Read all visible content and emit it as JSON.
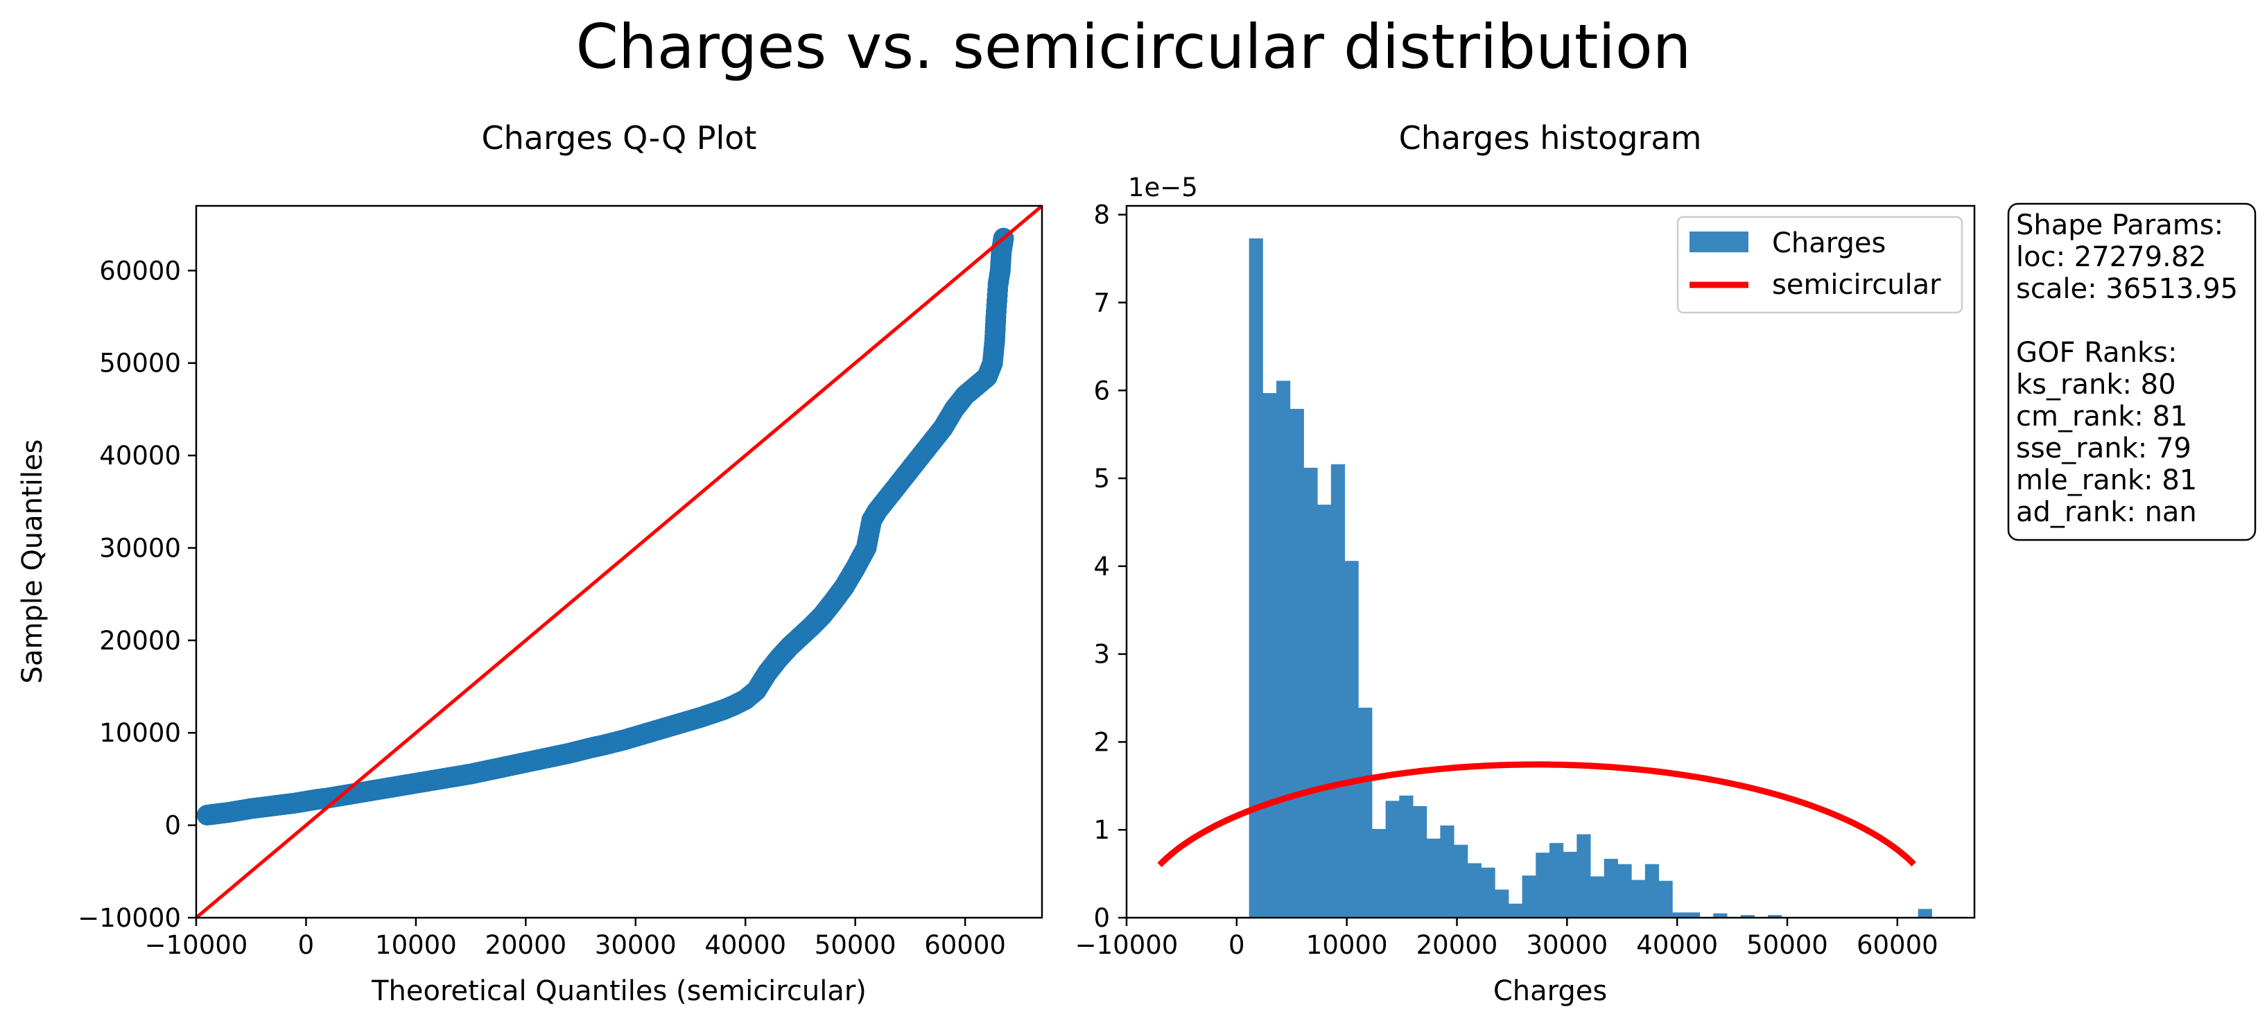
{
  "figure": {
    "suptitle": "Charges vs. semicircular distribution"
  },
  "colors": {
    "data": "#1f77b4",
    "hist": "#3a87bf",
    "fit": "#ff0000"
  },
  "chart_data": [
    {
      "type": "scatter",
      "title": "Charges Q-Q Plot",
      "xlabel": "Theoretical Quantiles (semicircular)",
      "ylabel": "Sample Quantiles",
      "xlim": [
        -10000,
        67000
      ],
      "ylim": [
        -10000,
        67000
      ],
      "xticks": [
        -10000,
        0,
        10000,
        20000,
        30000,
        40000,
        50000,
        60000
      ],
      "yticks": [
        -10000,
        0,
        10000,
        20000,
        30000,
        40000,
        50000,
        60000
      ],
      "reference_line": {
        "x": [
          -10000,
          67000
        ],
        "y": [
          -10000,
          67000
        ]
      },
      "series": [
        {
          "points": [
            [
              -9000,
              1100
            ],
            [
              -8000,
              1250
            ],
            [
              -7000,
              1400
            ],
            [
              -6000,
              1600
            ],
            [
              -5000,
              1800
            ],
            [
              -4000,
              1950
            ],
            [
              -3000,
              2100
            ],
            [
              -2000,
              2250
            ],
            [
              -1000,
              2400
            ],
            [
              0,
              2600
            ],
            [
              1000,
              2800
            ],
            [
              2000,
              2950
            ],
            [
              3000,
              3150
            ],
            [
              4000,
              3350
            ],
            [
              5000,
              3550
            ],
            [
              6000,
              3750
            ],
            [
              7000,
              3950
            ],
            [
              8000,
              4150
            ],
            [
              9000,
              4350
            ],
            [
              10000,
              4550
            ],
            [
              11000,
              4750
            ],
            [
              12000,
              4950
            ],
            [
              13000,
              5150
            ],
            [
              14000,
              5350
            ],
            [
              15000,
              5550
            ],
            [
              16000,
              5800
            ],
            [
              17000,
              6050
            ],
            [
              18000,
              6300
            ],
            [
              19000,
              6550
            ],
            [
              20000,
              6800
            ],
            [
              21000,
              7050
            ],
            [
              22000,
              7300
            ],
            [
              23000,
              7550
            ],
            [
              24000,
              7800
            ],
            [
              25000,
              8100
            ],
            [
              26000,
              8400
            ],
            [
              27000,
              8650
            ],
            [
              28000,
              8950
            ],
            [
              29000,
              9250
            ],
            [
              30000,
              9600
            ],
            [
              31000,
              9950
            ],
            [
              32000,
              10300
            ],
            [
              33000,
              10650
            ],
            [
              34000,
              11000
            ],
            [
              35000,
              11350
            ],
            [
              36000,
              11700
            ],
            [
              37000,
              12100
            ],
            [
              38000,
              12500
            ],
            [
              39000,
              13000
            ],
            [
              40000,
              13600
            ],
            [
              41000,
              14600
            ],
            [
              42000,
              16500
            ],
            [
              43000,
              18000
            ],
            [
              44000,
              19300
            ],
            [
              45000,
              20400
            ],
            [
              46000,
              21500
            ],
            [
              47000,
              22700
            ],
            [
              48000,
              24200
            ],
            [
              49000,
              25800
            ],
            [
              50000,
              27800
            ],
            [
              51000,
              30000
            ],
            [
              51500,
              33000
            ],
            [
              52000,
              34000
            ],
            [
              53000,
              35500
            ],
            [
              54000,
              37000
            ],
            [
              55000,
              38500
            ],
            [
              56000,
              40000
            ],
            [
              57000,
              41500
            ],
            [
              58000,
              43000
            ],
            [
              59000,
              45000
            ],
            [
              60000,
              46500
            ],
            [
              61000,
              47500
            ],
            [
              62000,
              48500
            ],
            [
              62500,
              50000
            ],
            [
              62700,
              52500
            ],
            [
              62800,
              55000
            ],
            [
              63000,
              58500
            ],
            [
              63200,
              60000
            ],
            [
              63300,
              62000
            ],
            [
              63500,
              63500
            ]
          ]
        }
      ]
    },
    {
      "type": "bar",
      "title": "Charges histogram",
      "xlabel": "Charges",
      "ylabel": "",
      "y_offset_text": "1e−5",
      "xlim": [
        -10000,
        67000
      ],
      "ylim": [
        0,
        8.1
      ],
      "xticks": [
        -10000,
        0,
        10000,
        20000,
        30000,
        40000,
        50000,
        60000
      ],
      "yticks": [
        0,
        1,
        2,
        3,
        4,
        5,
        6,
        7,
        8
      ],
      "legend": {
        "position": "top-right",
        "entries": [
          "Charges",
          "semicircular"
        ]
      },
      "series": [
        {
          "name": "Charges",
          "bin_width": 1240,
          "bins_start": [
            1122,
            2362,
            3602,
            4842,
            6082,
            7322,
            8562,
            9802,
            11042,
            12282,
            13522,
            14762,
            16002,
            17242,
            18482,
            19722,
            20962,
            22202,
            23442,
            24682,
            25922,
            27162,
            28402,
            29642,
            30882,
            32122,
            33362,
            34602,
            35842,
            37082,
            38322,
            39562,
            40802,
            42042,
            43282,
            44522,
            45762,
            47002,
            48242,
            49482,
            50722,
            51962,
            53202,
            54442,
            55682,
            56922,
            58162,
            59402,
            60642,
            61882
          ],
          "values": [
            7.73,
            5.97,
            6.11,
            5.79,
            5.12,
            4.7,
            5.16,
            4.06,
            2.39,
            1.01,
            1.33,
            1.39,
            1.27,
            0.9,
            1.05,
            0.83,
            0.62,
            0.57,
            0.32,
            0.16,
            0.48,
            0.74,
            0.85,
            0.75,
            0.95,
            0.47,
            0.67,
            0.61,
            0.43,
            0.61,
            0.42,
            0.06,
            0.06,
            0.0,
            0.05,
            0.0,
            0.03,
            0.0,
            0.03,
            0.0,
            0.0,
            0.0,
            0.0,
            0.0,
            0.0,
            0.0,
            0.0,
            0.0,
            0.0,
            0.1
          ]
        },
        {
          "name": "semicircular",
          "type": "line",
          "loc": 27279.82,
          "scale": 36513.95,
          "x_range": [
            -7000,
            61500
          ]
        }
      ],
      "info_box": {
        "lines": [
          "Shape Params:",
          "loc: 27279.82",
          "scale: 36513.95",
          "",
          "GOF Ranks:",
          "ks_rank: 80",
          "cm_rank: 81",
          "sse_rank: 79",
          "mle_rank: 81",
          "ad_rank: nan"
        ]
      }
    }
  ]
}
